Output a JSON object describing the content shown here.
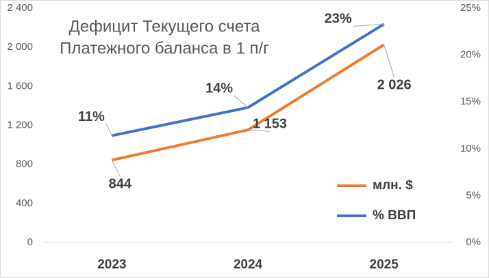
{
  "chart_data": {
    "type": "line",
    "title": [
      "Дефицит Текущего счета",
      "Платежного баланса в 1 п/г"
    ],
    "categories": [
      "2023",
      "2024",
      "2025"
    ],
    "series": [
      {
        "name": "млн. $",
        "color": "#ed7d31",
        "values": [
          844,
          1153,
          2026
        ],
        "value_labels": [
          "844",
          "1 153",
          "2 026"
        ]
      },
      {
        "name": "% ВВП",
        "color": "#4472c4",
        "axis": "y2",
        "values": [
          11.4,
          14.4,
          23.3
        ],
        "value_labels": [
          "11%",
          "14%",
          "23%"
        ]
      }
    ],
    "ylim": [
      0,
      2400
    ],
    "yticks": [
      0,
      400,
      800,
      {
        "value": 1200,
        "label": "1 200"
      },
      {
        "value": 1600,
        "label": "1 600"
      },
      {
        "value": 2000,
        "label": "2 000"
      },
      {
        "value": 2400,
        "label": "2 400"
      }
    ],
    "y2lim": [
      0,
      25
    ],
    "y2ticks": [
      {
        "value": 0,
        "label": "0%"
      },
      {
        "value": 5,
        "label": "5%"
      },
      {
        "value": 10,
        "label": "10%"
      },
      {
        "value": 15,
        "label": "15%"
      },
      {
        "value": 20,
        "label": "20%"
      },
      {
        "value": 25,
        "label": "25%"
      }
    ],
    "grid": false
  }
}
